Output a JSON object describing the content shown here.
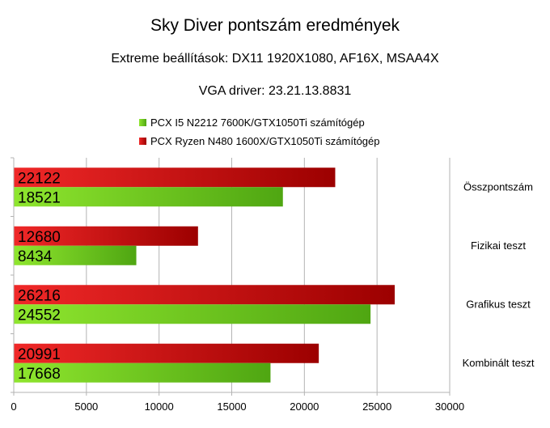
{
  "chart_data": {
    "type": "bar",
    "orientation": "horizontal",
    "title": "Sky Diver pontszám eredmények",
    "subtitle_1": "Extreme beállítások: DX11 1920X1080, AF16X, MSAA4X",
    "subtitle_2": "VGA driver: 23.21.13.8831",
    "categories": [
      "Összpontszám",
      "Fizikai teszt",
      "Grafikus teszt",
      "Kombinált teszt"
    ],
    "series": [
      {
        "name": "PCX I5 N2212 7600K/GTX1050Ti számítógép",
        "color": "#6cc91e",
        "values": [
          18521,
          8434,
          24552,
          17668
        ]
      },
      {
        "name": "PCX Ryzen N480 1600X/GTX1050Ti számítógép",
        "color": "#d40d0d",
        "values": [
          22122,
          12680,
          26216,
          20991
        ]
      }
    ],
    "xlim": [
      0,
      30000
    ],
    "xticks": [
      "0",
      "5000",
      "10000",
      "15000",
      "20000",
      "25000",
      "30000"
    ],
    "grid": true,
    "legend_position": "top",
    "category_label_position": "right"
  }
}
